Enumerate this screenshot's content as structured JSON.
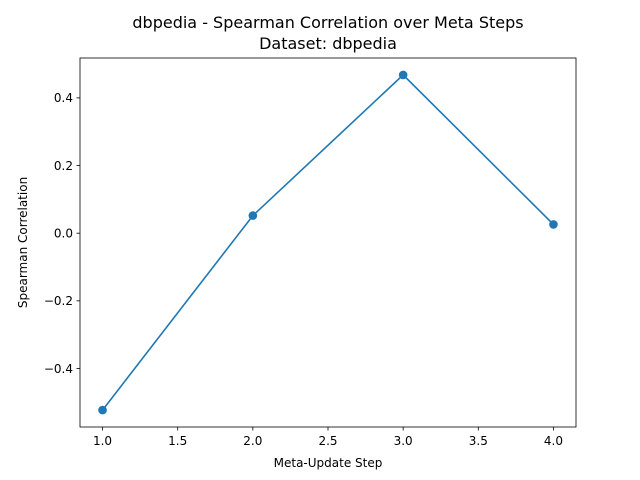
{
  "chart_data": {
    "type": "line",
    "title": "dbpedia - Spearman Correlation over Meta Steps",
    "subtitle": "Dataset: dbpedia",
    "xlabel": "Meta-Update Step",
    "ylabel": "Spearman Correlation",
    "x": [
      1.0,
      2.0,
      3.0,
      4.0
    ],
    "series": [
      {
        "values": [
          -0.523,
          0.052,
          0.468,
          0.026
        ]
      }
    ],
    "xlim": [
      0.85,
      4.15
    ],
    "ylim": [
      -0.573,
      0.518
    ],
    "xticks": [
      1.0,
      1.5,
      2.0,
      2.5,
      3.0,
      3.5,
      4.0
    ],
    "xtick_labels": [
      "1.0",
      "1.5",
      "2.0",
      "2.5",
      "3.0",
      "3.5",
      "4.0"
    ],
    "yticks": [
      -0.4,
      -0.2,
      0.0,
      0.2,
      0.4
    ],
    "ytick_labels": [
      "−0.4",
      "−0.2",
      "0.0",
      "0.2",
      "0.4"
    ],
    "grid": false,
    "legend": "none",
    "line_color": "#1f77b4",
    "marker": "circle"
  }
}
